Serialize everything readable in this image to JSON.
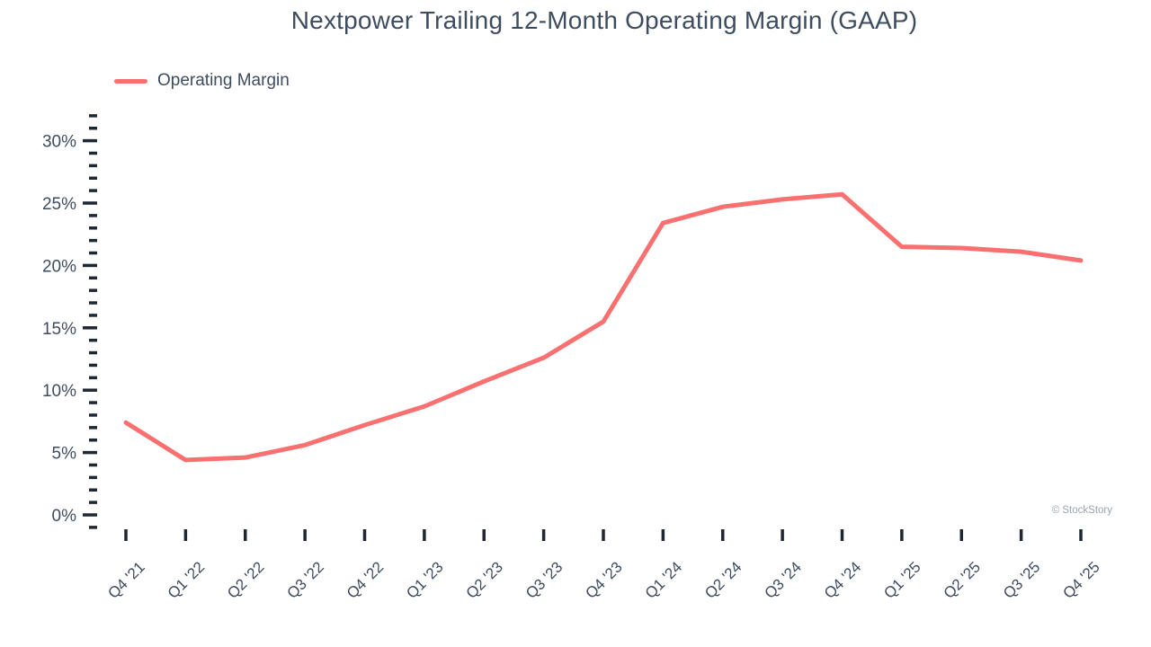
{
  "chart_data": {
    "type": "line",
    "title": "Nextpower Trailing 12-Month Operating Margin (GAAP)",
    "categories": [
      "Q4 '21",
      "Q1 '22",
      "Q2 '22",
      "Q3 '22",
      "Q4 '22",
      "Q1 '23",
      "Q2 '23",
      "Q3 '23",
      "Q4 '23",
      "Q1 '24",
      "Q2 '24",
      "Q3 '24",
      "Q4 '24",
      "Q1 '25",
      "Q2 '25",
      "Q3 '25",
      "Q4 '25"
    ],
    "series": [
      {
        "name": "Operating Margin",
        "color": "#f97070",
        "values": [
          7.4,
          4.4,
          4.6,
          5.6,
          7.2,
          8.7,
          10.7,
          12.6,
          15.5,
          23.4,
          24.7,
          25.3,
          25.7,
          21.5,
          21.4,
          21.1,
          20.4
        ]
      }
    ],
    "xlabel": "",
    "ylabel": "",
    "ylim": [
      -1,
      32
    ],
    "y_major_ticks": [
      0,
      5,
      10,
      15,
      20,
      25,
      30
    ],
    "y_minor_tick_step": 1,
    "y_tick_suffix": "%",
    "grid": false,
    "legend_position": "top-left",
    "markers": false,
    "watermark": "© StockStory"
  },
  "style": {
    "text_color": "#3e4c60",
    "tick_mark_color": "#1f2733",
    "watermark_color": "#9ca3af",
    "background": "#ffffff"
  }
}
